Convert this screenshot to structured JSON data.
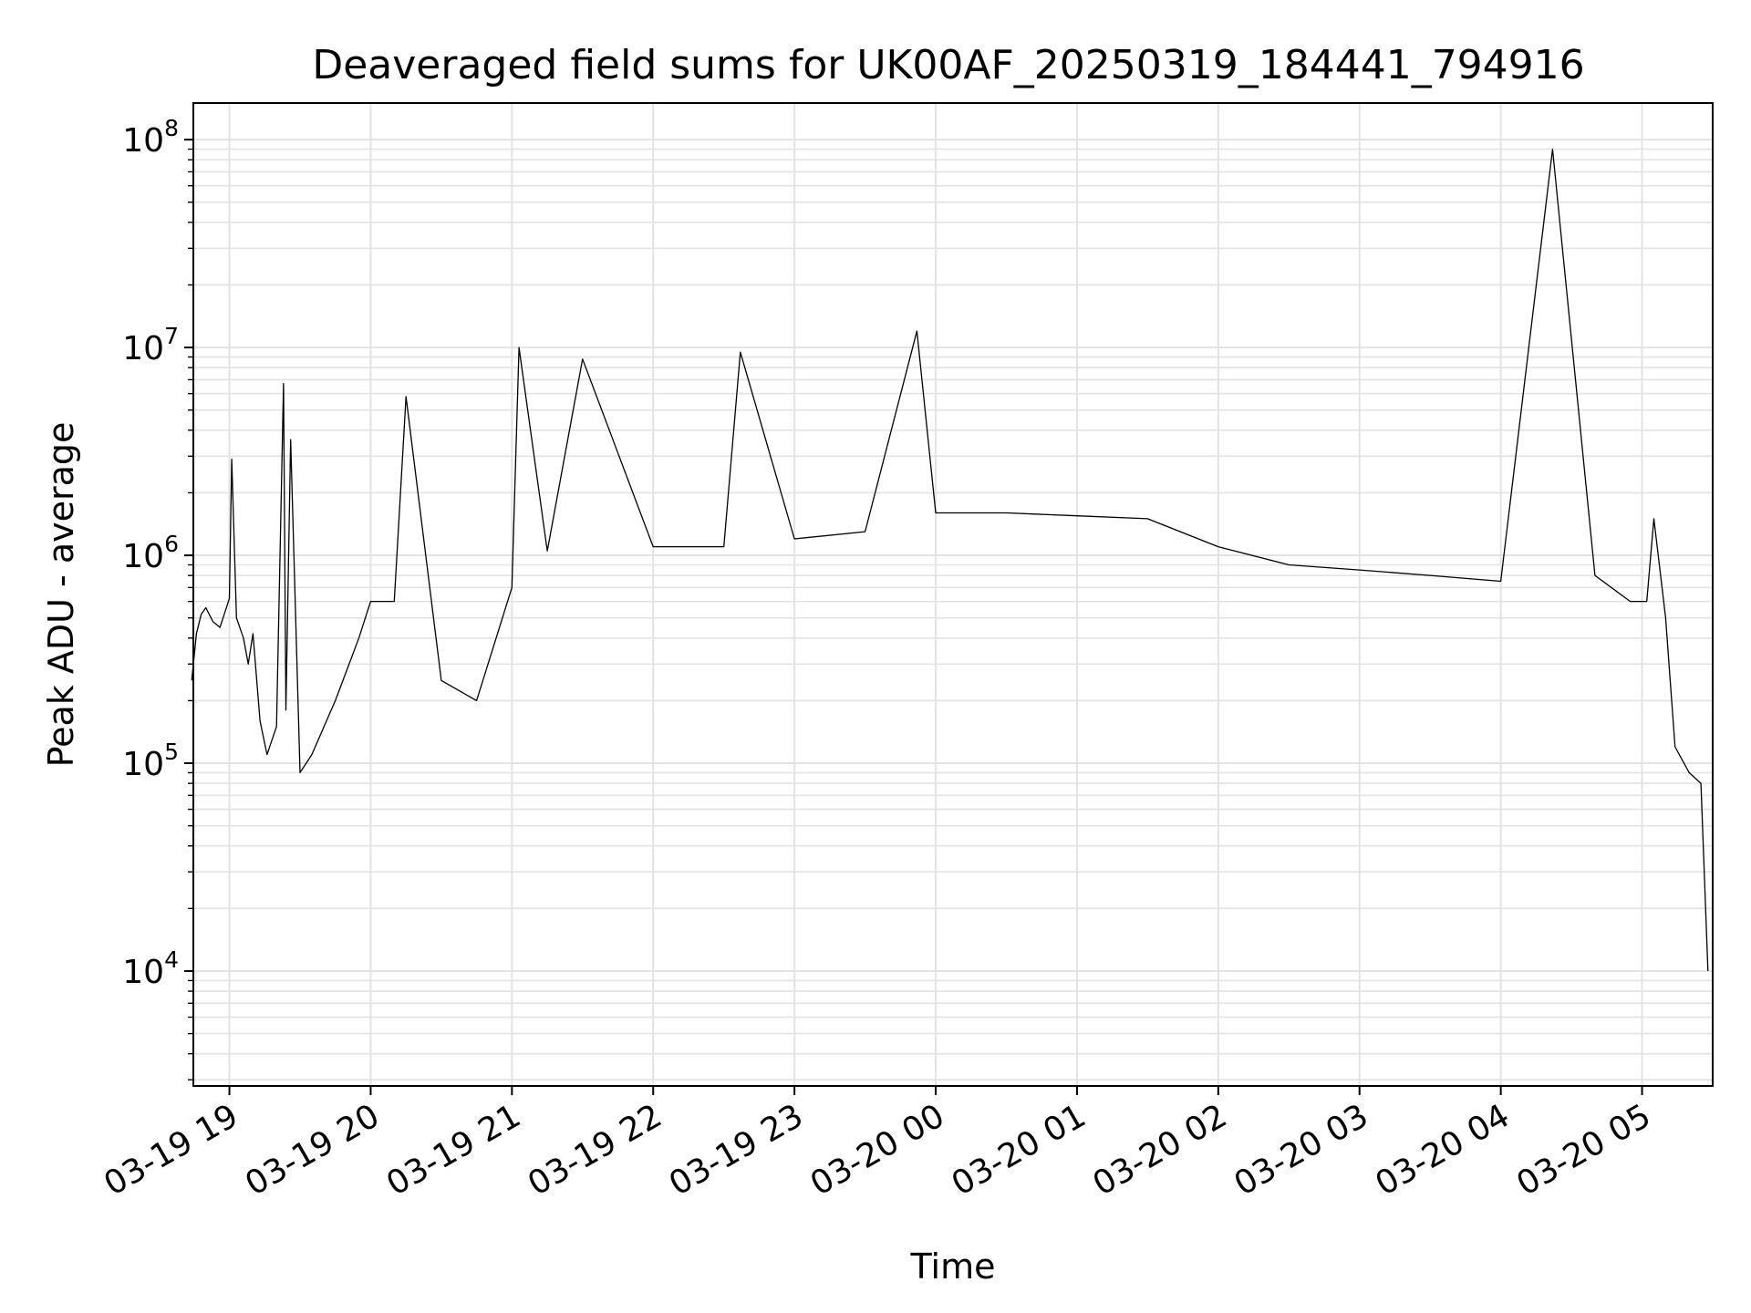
{
  "chart_data": {
    "type": "line",
    "title": "Deaveraged field sums for UK00AF_20250319_184441_794916",
    "xlabel": "Time",
    "ylabel": "Peak ADU - average",
    "y_scale": "log",
    "grid": true,
    "legend": "none",
    "line_color": "#000000",
    "grid_color": "#e3e3e3",
    "xlim": [
      "2025-03-19 18:44:41",
      "2025-03-20 05:30:00"
    ],
    "ylim": [
      2800,
      150000000
    ],
    "x_ticks": [
      {
        "t": "2025-03-19 19:00",
        "label": "03-19 19"
      },
      {
        "t": "2025-03-19 20:00",
        "label": "03-19 20"
      },
      {
        "t": "2025-03-19 21:00",
        "label": "03-19 21"
      },
      {
        "t": "2025-03-19 22:00",
        "label": "03-19 22"
      },
      {
        "t": "2025-03-19 23:00",
        "label": "03-19 23"
      },
      {
        "t": "2025-03-20 00:00",
        "label": "03-20 00"
      },
      {
        "t": "2025-03-20 01:00",
        "label": "03-20 01"
      },
      {
        "t": "2025-03-20 02:00",
        "label": "03-20 02"
      },
      {
        "t": "2025-03-20 03:00",
        "label": "03-20 03"
      },
      {
        "t": "2025-03-20 04:00",
        "label": "03-20 04"
      },
      {
        "t": "2025-03-20 05:00",
        "label": "03-20 05"
      }
    ],
    "y_ticks": [
      {
        "value": 10000,
        "base": "10",
        "exp": "4"
      },
      {
        "value": 100000,
        "base": "10",
        "exp": "5"
      },
      {
        "value": 1000000,
        "base": "10",
        "exp": "6"
      },
      {
        "value": 10000000,
        "base": "10",
        "exp": "7"
      },
      {
        "value": 100000000,
        "base": "10",
        "exp": "8"
      }
    ],
    "series": [
      {
        "x": [
          "2025-03-19 18:44",
          "2025-03-19 18:46",
          "2025-03-19 18:48",
          "2025-03-19 18:50",
          "2025-03-19 18:53",
          "2025-03-19 18:56",
          "2025-03-19 19:00",
          "2025-03-19 19:01",
          "2025-03-19 19:03",
          "2025-03-19 19:06",
          "2025-03-19 19:08",
          "2025-03-19 19:10",
          "2025-03-19 19:13",
          "2025-03-19 19:16",
          "2025-03-19 19:20",
          "2025-03-19 19:23",
          "2025-03-19 19:24",
          "2025-03-19 19:26",
          "2025-03-19 19:30",
          "2025-03-19 19:35",
          "2025-03-19 19:45",
          "2025-03-19 19:55",
          "2025-03-19 20:00",
          "2025-03-19 20:10",
          "2025-03-19 20:15",
          "2025-03-19 20:30",
          "2025-03-19 20:45",
          "2025-03-19 21:00",
          "2025-03-19 21:03",
          "2025-03-19 21:15",
          "2025-03-19 21:30",
          "2025-03-19 22:00",
          "2025-03-19 22:30",
          "2025-03-19 22:37",
          "2025-03-19 23:00",
          "2025-03-19 23:30",
          "2025-03-19 23:52",
          "2025-03-20 00:00",
          "2025-03-20 00:30",
          "2025-03-20 01:00",
          "2025-03-20 01:30",
          "2025-03-20 02:00",
          "2025-03-20 02:30",
          "2025-03-20 03:00",
          "2025-03-20 03:30",
          "2025-03-20 04:00",
          "2025-03-20 04:22",
          "2025-03-20 04:40",
          "2025-03-20 04:55",
          "2025-03-20 05:02",
          "2025-03-20 05:05",
          "2025-03-20 05:10",
          "2025-03-20 05:14",
          "2025-03-20 05:20",
          "2025-03-20 05:25",
          "2025-03-20 05:28"
        ],
        "y": [
          250000,
          420000,
          520000,
          560000,
          480000,
          450000,
          620000,
          2900000,
          500000,
          400000,
          300000,
          420000,
          160000,
          110000,
          150000,
          6700000,
          180000,
          3600000,
          90000,
          110000,
          200000,
          400000,
          600000,
          600000,
          5800000,
          250000,
          200000,
          700000,
          10000000,
          1050000,
          8800000,
          1100000,
          1100000,
          9500000,
          1200000,
          1300000,
          12000000,
          1600000,
          1600000,
          1550000,
          1500000,
          1100000,
          900000,
          850000,
          800000,
          750000,
          90000000,
          800000,
          600000,
          600000,
          1500000,
          500000,
          120000,
          90000,
          80000,
          10000
        ]
      }
    ]
  }
}
